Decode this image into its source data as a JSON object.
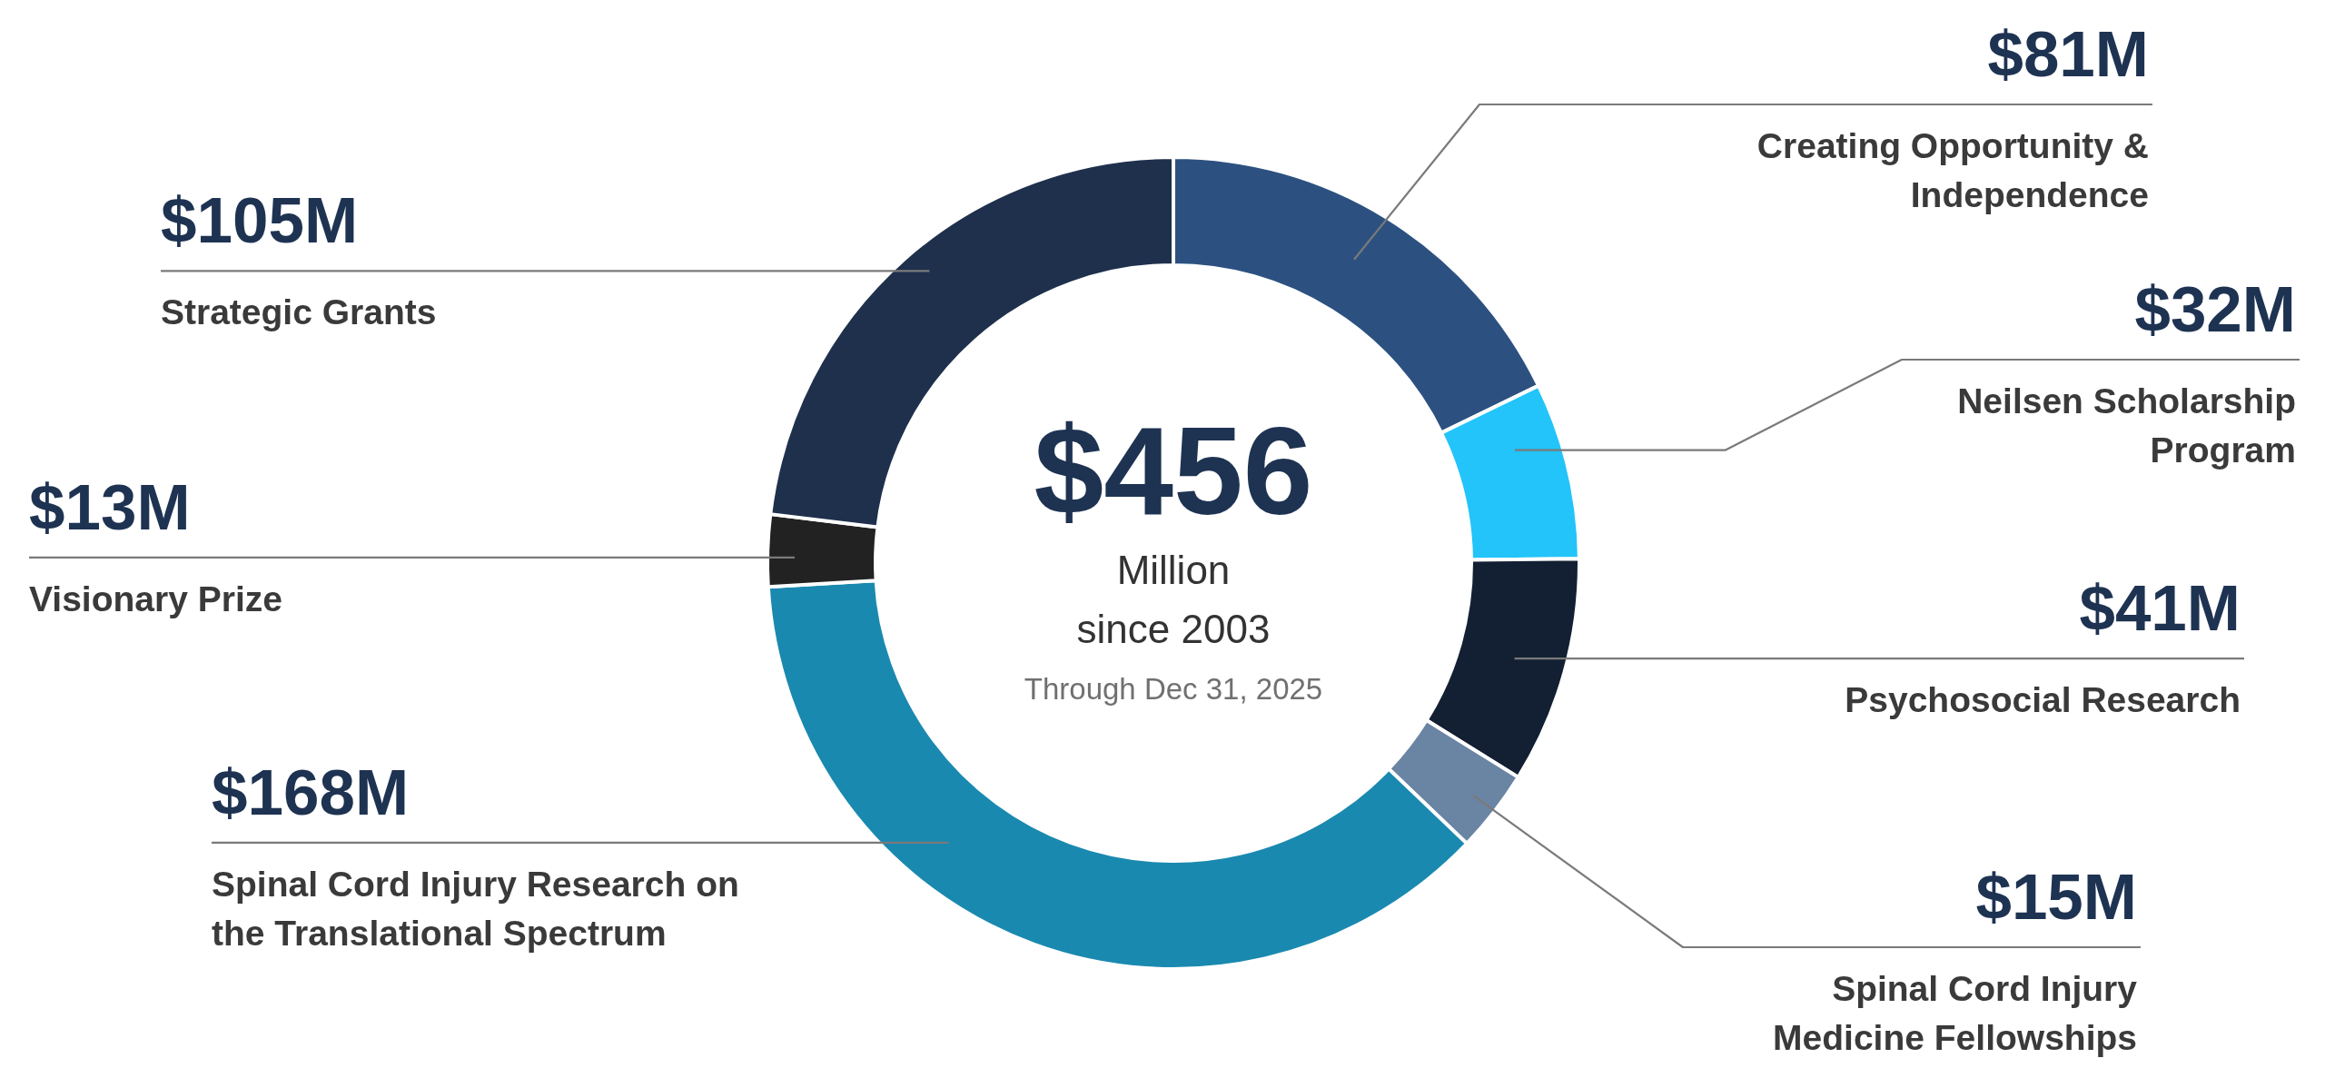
{
  "chart_data": {
    "type": "donut",
    "categories": [
      "Creating Opportunity & Independence",
      "Neilsen Scholarship Program",
      "Psychosocial Research",
      "Spinal Cord Injury Medicine Fellowships",
      "Spinal Cord Injury Research on the Translational Spectrum",
      "Visionary Prize",
      "Strategic Grants"
    ],
    "values": [
      81,
      32,
      41,
      15,
      168,
      13,
      105
    ],
    "value_labels": [
      "$81M",
      "$32M",
      "$41M",
      "$15M",
      "$168M",
      "$13M",
      "$105M"
    ],
    "colors": [
      "#2c5180",
      "#22c4fa",
      "#132033",
      "#6a84a3",
      "#1a89b0",
      "#222222",
      "#1e304c"
    ],
    "annotations": [
      "$456",
      "Million",
      "since 2003",
      "Through Dec 31, 2025"
    ]
  }
}
